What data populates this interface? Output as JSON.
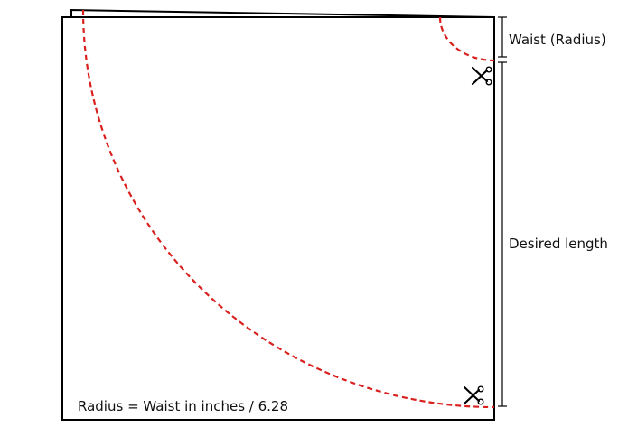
{
  "labels": {
    "waist": "Waist (Radius)",
    "desired_length": "Desired length",
    "formula": "Radius = Waist in inches / 6.28"
  },
  "colors": {
    "outline": "#000000",
    "cut_line": "#d9201e",
    "text": "#111111"
  },
  "icons": {
    "scissors": "scissors-icon"
  }
}
